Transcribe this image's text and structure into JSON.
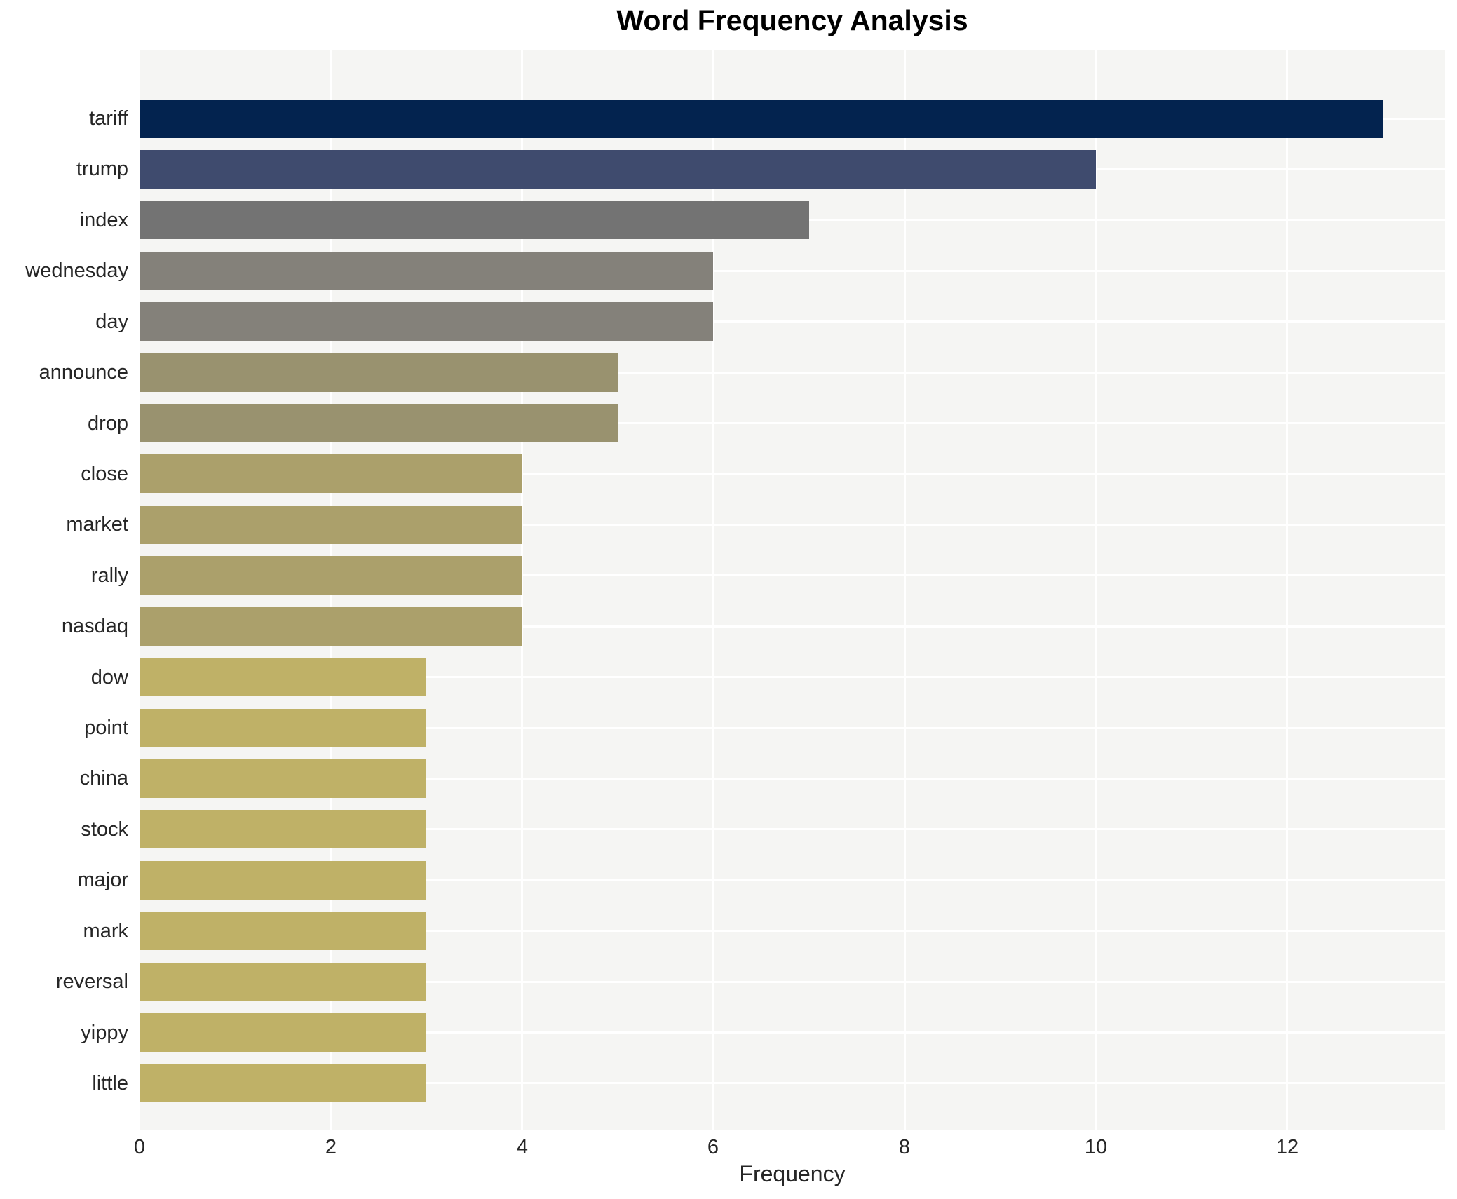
{
  "chart_data": {
    "type": "bar",
    "orientation": "horizontal",
    "title": "Word Frequency Analysis",
    "xlabel": "Frequency",
    "ylabel": "",
    "categories": [
      "tariff",
      "trump",
      "index",
      "wednesday",
      "day",
      "announce",
      "drop",
      "close",
      "market",
      "rally",
      "nasdaq",
      "dow",
      "point",
      "china",
      "stock",
      "major",
      "mark",
      "reversal",
      "yippy",
      "little"
    ],
    "values": [
      13,
      10,
      7,
      6,
      6,
      5,
      5,
      4,
      4,
      4,
      4,
      3,
      3,
      3,
      3,
      3,
      3,
      3,
      3,
      3
    ],
    "bar_colors": [
      "#03234f",
      "#3f4b6e",
      "#737373",
      "#84817a",
      "#84817a",
      "#99926f",
      "#99926f",
      "#aba06b",
      "#aba06b",
      "#aba06b",
      "#aba06b",
      "#bfb167",
      "#bfb167",
      "#bfb167",
      "#bfb167",
      "#bfb167",
      "#bfb167",
      "#bfb167",
      "#bfb167",
      "#bfb167"
    ],
    "xlim": [
      0,
      13.65
    ],
    "x_ticks": [
      0,
      2,
      4,
      6,
      8,
      10,
      12
    ],
    "grid": true,
    "legend": "none",
    "plot_bg_color": "#f5f5f3",
    "grid_color": "#ffffff",
    "text_color": "#262626",
    "title_color": "#000000"
  }
}
